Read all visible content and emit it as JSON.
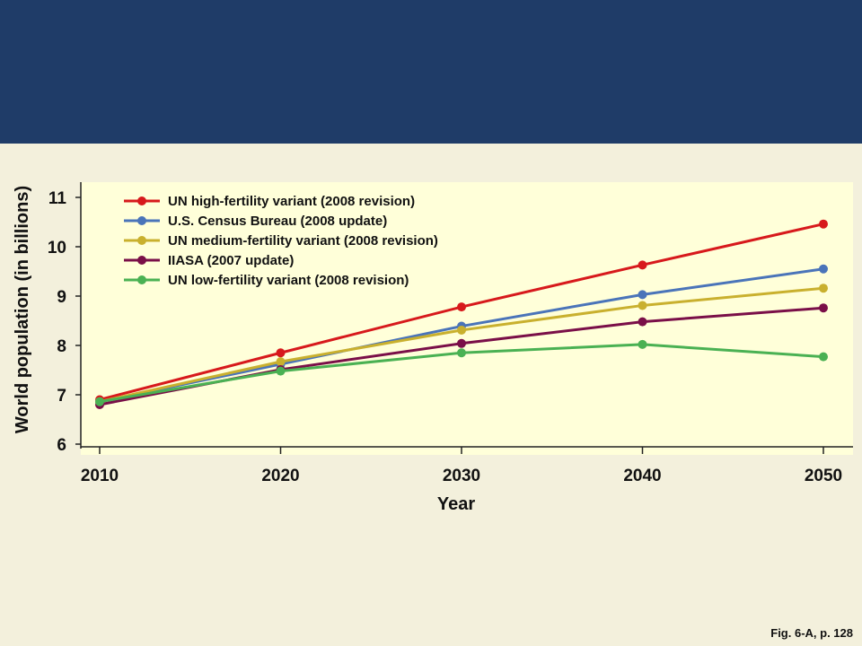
{
  "caption": "Fig. 6-A, p. 128",
  "chart_data": {
    "type": "line",
    "title": "",
    "xlabel": "Year",
    "ylabel": "World population (in billions)",
    "x": [
      2010,
      2020,
      2030,
      2040,
      2050
    ],
    "xlim": [
      2010,
      2050
    ],
    "ylim": [
      6,
      11
    ],
    "yticks": [
      6,
      7,
      8,
      9,
      10,
      11
    ],
    "xticks": [
      2010,
      2020,
      2030,
      2040,
      2050
    ],
    "legend_position": "top-left",
    "grid": false,
    "plot_background": "#ffffd9",
    "series": [
      {
        "name": "UN high-fertility variant (2008 revision)",
        "color": "#d7191c",
        "values": [
          6.9,
          7.85,
          8.78,
          9.63,
          10.46
        ]
      },
      {
        "name": "U.S. Census Bureau (2008 update)",
        "color": "#4a74b9",
        "values": [
          6.86,
          7.62,
          8.39,
          9.03,
          9.55
        ]
      },
      {
        "name": "UN medium-fertility variant (2008 revision)",
        "color": "#c9b02e",
        "values": [
          6.86,
          7.67,
          8.31,
          8.81,
          9.16
        ]
      },
      {
        "name": "IIASA (2007 update)",
        "color": "#7a0f48",
        "values": [
          6.8,
          7.51,
          8.04,
          8.48,
          8.76
        ]
      },
      {
        "name": "UN low-fertility variant (2008 revision)",
        "color": "#4ab153",
        "values": [
          6.86,
          7.48,
          7.85,
          8.02,
          7.77
        ]
      }
    ]
  }
}
